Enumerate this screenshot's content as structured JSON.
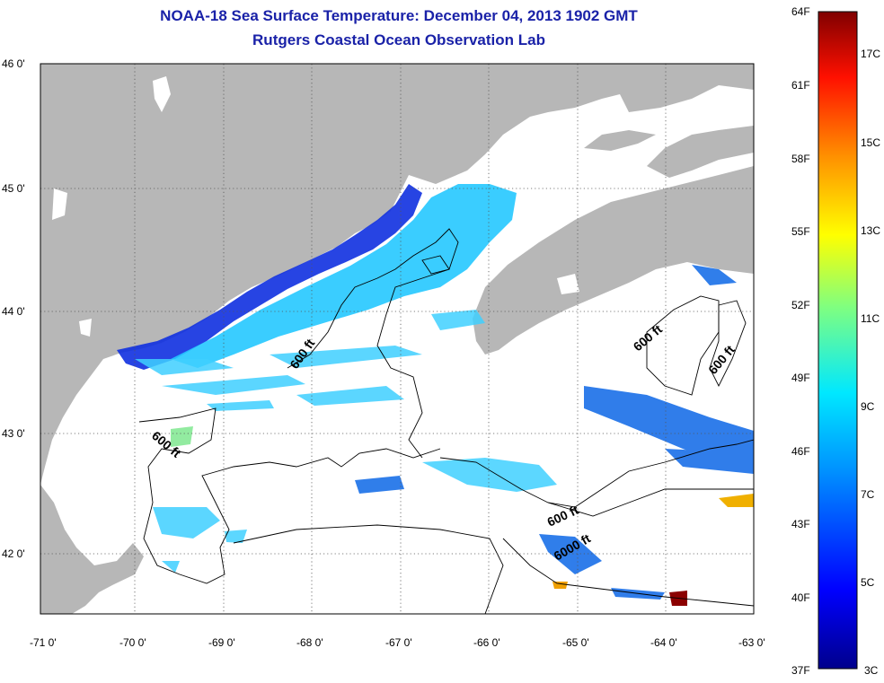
{
  "header": {
    "title": "NOAA-18 Sea Surface Temperature:  December 04, 2013 1902 GMT",
    "subtitle": "Rutgers Coastal Ocean Observation Lab"
  },
  "map": {
    "lat_ticks": [
      "46 0'",
      "45 0'",
      "44 0'",
      "43 0'",
      "42 0'"
    ],
    "lon_ticks": [
      "-71 0'",
      "-70 0'",
      "-69 0'",
      "-68 0'",
      "-67 0'",
      "-66 0'",
      "-65 0'",
      "-64 0'",
      "-63 0'"
    ],
    "contour_labels": [
      "600 ft",
      "600 ft",
      "600 ft",
      "600 ft",
      "600 ft",
      "6000 ft"
    ],
    "colors": {
      "land": "#b7b7b7",
      "ocean": "#ffffff",
      "contour": "#000000"
    }
  },
  "colorbar": {
    "fahrenheit": [
      "64F",
      "61F",
      "58F",
      "55F",
      "52F",
      "49F",
      "46F",
      "43F",
      "40F",
      "37F"
    ],
    "celsius": [
      "17C",
      "15C",
      "13C",
      "11C",
      "9C",
      "7C",
      "5C",
      "3C"
    ]
  }
}
